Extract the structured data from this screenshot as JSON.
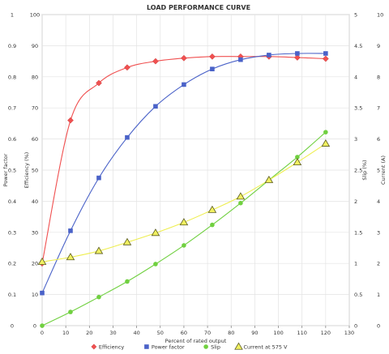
{
  "chart_data": {
    "type": "line",
    "title": "LOAD PERFORMANCE CURVE",
    "xlabel": "Percent of rated output",
    "xlim": [
      0,
      130
    ],
    "xticks": [
      0,
      10,
      20,
      30,
      40,
      50,
      60,
      70,
      80,
      90,
      100,
      110,
      120,
      130
    ],
    "axes": {
      "power_factor": {
        "label": "Power factor",
        "lim": [
          0,
          1
        ],
        "ticks": [
          "0",
          "0.1",
          "0.2",
          "0.3",
          "0.4",
          "0.5",
          "0.6",
          "0.7",
          "0.8",
          "0.9",
          "1"
        ]
      },
      "efficiency": {
        "label": "Efficiency (%)",
        "lim": [
          0,
          100
        ],
        "ticks": [
          "0",
          "10",
          "20",
          "30",
          "40",
          "50",
          "60",
          "70",
          "80",
          "90",
          "100"
        ]
      },
      "slip": {
        "label": "Slip (%)",
        "lim": [
          0,
          5
        ],
        "ticks": [
          "0",
          "0.5",
          "1",
          "1.5",
          "2",
          "2.5",
          "3",
          "3.5",
          "4",
          "4.5",
          "5"
        ]
      },
      "current": {
        "label": "Current (A)",
        "lim": [
          0,
          10
        ],
        "ticks": [
          "0",
          "1",
          "2",
          "3",
          "4",
          "5",
          "6",
          "7",
          "8",
          "9",
          "10"
        ]
      }
    },
    "grid": true,
    "legend_position": "bottom",
    "series": [
      {
        "name": "Efficiency",
        "axis": "efficiency",
        "color": "#f05050",
        "marker": "diamond",
        "x": [
          0,
          12,
          24,
          36,
          48,
          60,
          72,
          84,
          96,
          108,
          120
        ],
        "y": [
          20,
          66,
          78,
          83,
          85,
          86,
          86.5,
          86.5,
          86.5,
          86.2,
          85.8
        ]
      },
      {
        "name": "Power factor",
        "axis": "power_factor",
        "color": "#4a62c8",
        "marker": "square",
        "x": [
          0,
          12,
          24,
          36,
          48,
          60,
          72,
          84,
          96,
          108,
          120
        ],
        "y": [
          0.105,
          0.305,
          0.475,
          0.605,
          0.705,
          0.775,
          0.825,
          0.855,
          0.87,
          0.875,
          0.875
        ]
      },
      {
        "name": "Slip",
        "axis": "slip",
        "color": "#70d040",
        "marker": "circle",
        "x": [
          0,
          12,
          24,
          36,
          48,
          60,
          72,
          84,
          96,
          108,
          120
        ],
        "y": [
          0,
          0.22,
          0.46,
          0.71,
          0.99,
          1.29,
          1.62,
          1.97,
          2.34,
          2.71,
          3.11
        ]
      },
      {
        "name": "Current at 575 V",
        "axis": "current",
        "color": "#f0f060",
        "marker": "triangle",
        "x": [
          0,
          12,
          24,
          36,
          48,
          60,
          72,
          84,
          96,
          108,
          120
        ],
        "y": [
          2.05,
          2.2,
          2.4,
          2.68,
          2.98,
          3.32,
          3.72,
          4.15,
          4.68,
          5.25,
          5.85
        ]
      }
    ]
  }
}
